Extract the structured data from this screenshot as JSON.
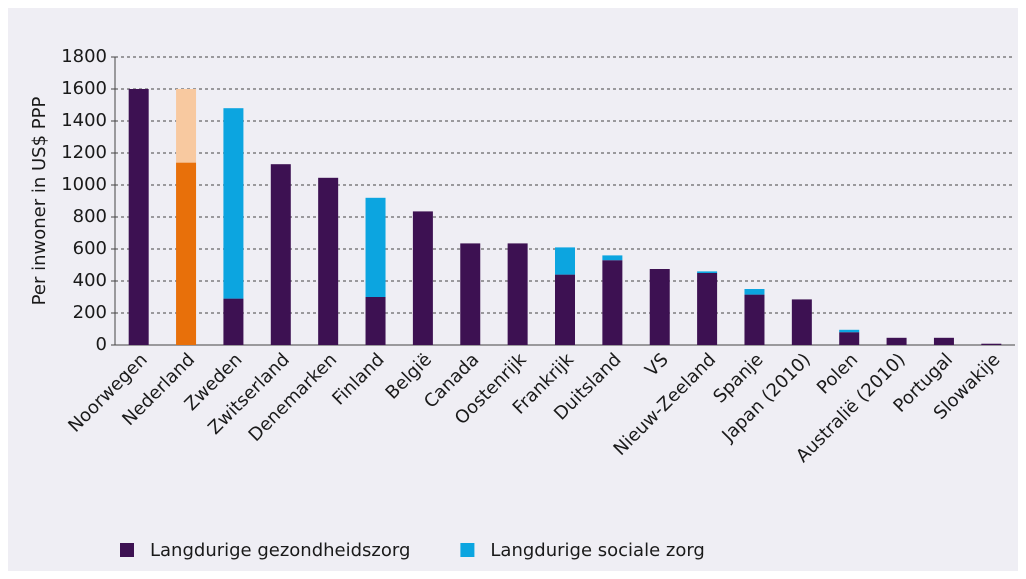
{
  "chart_data": {
    "type": "stacked_bar",
    "y_label": "Per inwoner in US$ PPP",
    "categories": [
      "Noorwegen",
      "Nederland",
      "Zweden",
      "Zwitserland",
      "Denemarken",
      "Finland",
      "België",
      "Canada",
      "Oostenrijk",
      "Frankrijk",
      "Duitsland",
      "VS",
      "Nieuw-Zeeland",
      "Spanje",
      "Japan (2010)",
      "Polen",
      "Australië (2010)",
      "Portugal",
      "Slowakije"
    ],
    "series": [
      {
        "name": "Langdurige gezondheidszorg",
        "color": "#3d1152",
        "values": [
          1600,
          1140,
          290,
          1130,
          1045,
          300,
          835,
          635,
          635,
          440,
          530,
          475,
          450,
          315,
          285,
          80,
          45,
          45,
          8
        ],
        "colors": [
          "#3d1152",
          "#e8700a",
          "#3d1152",
          "#3d1152",
          "#3d1152",
          "#3d1152",
          "#3d1152",
          "#3d1152",
          "#3d1152",
          "#3d1152",
          "#3d1152",
          "#3d1152",
          "#3d1152",
          "#3d1152",
          "#3d1152",
          "#3d1152",
          "#3d1152",
          "#3d1152",
          "#3d1152"
        ]
      },
      {
        "name": "Langdurige sociale zorg",
        "color": "#0ca5e0",
        "values": [
          0,
          460,
          1190,
          0,
          0,
          620,
          0,
          0,
          0,
          170,
          30,
          0,
          10,
          35,
          0,
          15,
          0,
          0,
          0
        ],
        "colors": [
          "#0ca5e0",
          "#f8c9a0",
          "#0ca5e0",
          "#0ca5e0",
          "#0ca5e0",
          "#0ca5e0",
          "#0ca5e0",
          "#0ca5e0",
          "#0ca5e0",
          "#0ca5e0",
          "#0ca5e0",
          "#0ca5e0",
          "#0ca5e0",
          "#0ca5e0",
          "#0ca5e0",
          "#0ca5e0",
          "#0ca5e0",
          "#0ca5e0",
          "#0ca5e0"
        ]
      }
    ],
    "ylim": [
      0,
      1800
    ],
    "yticks": [
      0,
      200,
      400,
      600,
      800,
      1000,
      1200,
      1400,
      1600,
      1800
    ],
    "grid": true
  }
}
